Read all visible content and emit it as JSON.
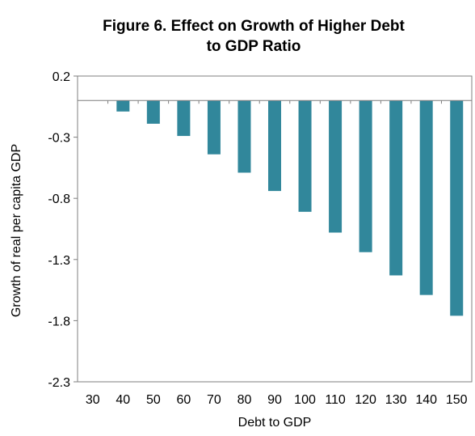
{
  "chart_data": {
    "type": "bar",
    "title_line1": "Figure 6. Effect on Growth of Higher Debt",
    "title_line2": "to GDP Ratio",
    "xlabel": "Debt to GDP",
    "ylabel": "Growth of real per capita GDP",
    "categories": [
      "30",
      "40",
      "50",
      "60",
      "70",
      "80",
      "90",
      "100",
      "110",
      "120",
      "130",
      "140",
      "150"
    ],
    "values": [
      0,
      -0.09,
      -0.19,
      -0.29,
      -0.44,
      -0.59,
      -0.74,
      -0.91,
      -1.08,
      -1.24,
      -1.43,
      -1.59,
      -1.76
    ],
    "ylim": [
      -2.3,
      0.2
    ],
    "yticks": [
      "0.2",
      "-0.3",
      "-0.8",
      "-1.3",
      "-1.8",
      "-2.3"
    ],
    "bar_color": "#31879b",
    "grid": false,
    "legend": "none"
  }
}
